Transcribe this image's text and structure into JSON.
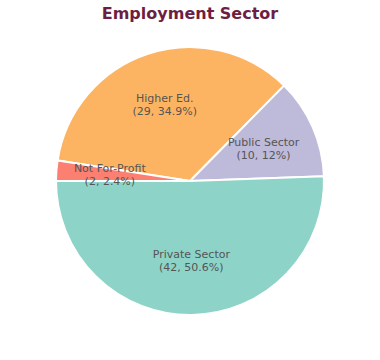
{
  "chart_data": {
    "type": "pie",
    "title": "Employment Sector",
    "categories": [
      "Higher Ed.",
      "Public Sector",
      "Private Sector",
      "Not For-Profit"
    ],
    "values": [
      29,
      10,
      42,
      2
    ],
    "value_labels": [
      "(29, 34.9%)",
      "(10, 12%)",
      "(42, 50.6%)",
      "(2, 2.4%)"
    ],
    "colors": [
      "#fdb462",
      "#bebada",
      "#8dd3c7",
      "#fb8072"
    ],
    "data_labels": true
  }
}
